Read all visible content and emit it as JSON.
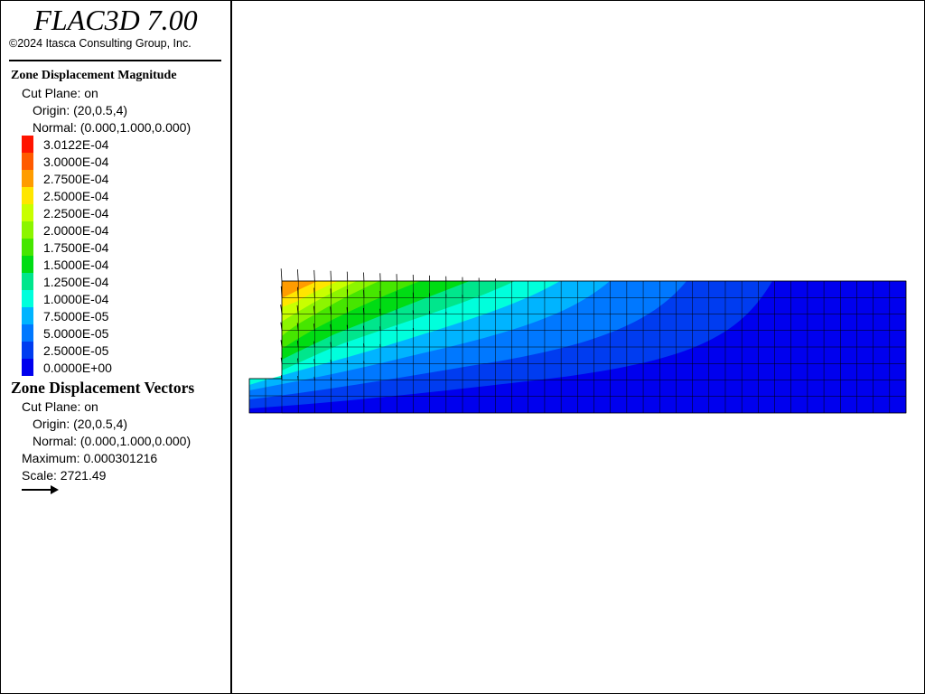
{
  "header": {
    "title": "FLAC3D 7.00",
    "copyright": "©2024 Itasca Consulting Group, Inc."
  },
  "magnitude": {
    "title": "Zone Displacement Magnitude",
    "cut_plane": "Cut Plane: on",
    "origin": "Origin: (20,0.5,4)",
    "normal": "Normal: (0.000,1.000,0.000)",
    "levels": [
      {
        "label": "3.0122E-04",
        "color": "#ff1400"
      },
      {
        "label": "3.0000E-04",
        "color": "#ff5a00"
      },
      {
        "label": "2.7500E-04",
        "color": "#ff9c00"
      },
      {
        "label": "2.5000E-04",
        "color": "#ffe600"
      },
      {
        "label": "2.2500E-04",
        "color": "#c8ff00"
      },
      {
        "label": "2.0000E-04",
        "color": "#8cf500"
      },
      {
        "label": "1.7500E-04",
        "color": "#46e600"
      },
      {
        "label": "1.5000E-04",
        "color": "#00dc14"
      },
      {
        "label": "1.2500E-04",
        "color": "#00e68c"
      },
      {
        "label": "1.0000E-04",
        "color": "#00ffdc"
      },
      {
        "label": "7.5000E-05",
        "color": "#00b4ff"
      },
      {
        "label": "5.0000E-05",
        "color": "#0078ff"
      },
      {
        "label": "2.5000E-05",
        "color": "#003cf0"
      },
      {
        "label": "0.0000E+00",
        "color": "#0000ee"
      }
    ]
  },
  "vectors": {
    "title": "Zone Displacement Vectors",
    "cut_plane": "Cut Plane: on",
    "origin": "Origin: (20,0.5,4)",
    "normal": "Normal: (0.000,1.000,0.000)",
    "maximum": "Maximum: 0.000301216",
    "scale": "Scale: 2721.49"
  }
}
